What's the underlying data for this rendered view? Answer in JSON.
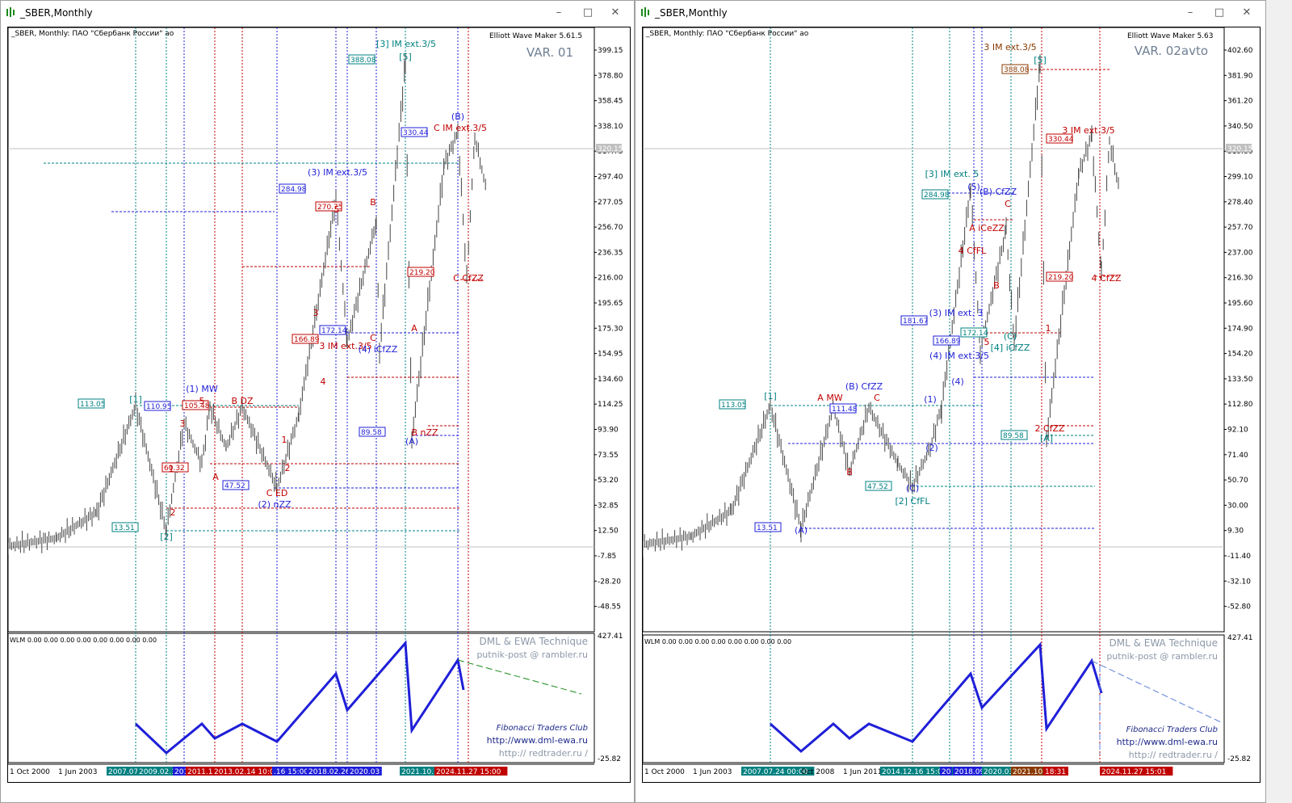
{
  "windows": [
    {
      "title": "_SBER,Monthly",
      "header_text": "_SBER, Monthly:  ПАО \"Сбербанк России\" ао",
      "indicator_name": "Elliott Wave Maker 5.61.5",
      "variant": "VAR. 01",
      "sub_label": "WLM 0.00 0.00 0.00 0.00 0.00 0.00 0.00 0.00",
      "watermark": {
        "l1": "DML & EWA Technique",
        "l2": "putnik-post @ rambler.ru",
        "l3": "Fibonacci     Traders     Club",
        "l4": "http://www.dml-ewa.ru",
        "l5": "http:// redtrader.ru /"
      },
      "y_ticks": [
        "399.15",
        "378.80",
        "358.45",
        "338.10",
        "317.75",
        "297.40",
        "277.05",
        "256.70",
        "236.35",
        "216.00",
        "195.65",
        "175.30",
        "154.95",
        "134.60",
        "114.25",
        "93.90",
        "73.55",
        "53.20",
        "32.85",
        "12.50",
        "-7.85",
        "-28.20",
        "-48.55"
      ],
      "sub_ticks": [
        "427.41",
        "-25.82"
      ],
      "current_price": "320.15",
      "x_labels": [
        {
          "t": "1 Oct 2000",
          "bg": "",
          "c": "#000"
        },
        {
          "t": "1 Jun 2003",
          "bg": "",
          "c": "#000"
        },
        {
          "t": "2007.07.",
          "bg": "#008080",
          "c": "#fff"
        },
        {
          "t": "2009.02.16",
          "bg": "#008080",
          "c": "#fff"
        },
        {
          "t": "201",
          "bg": "#1f1fd8",
          "c": "#fff"
        },
        {
          "t": "2011.1",
          "bg": "#c00000",
          "c": "#fff"
        },
        {
          "t": "2013.02.14 10:00",
          "bg": "#c00000",
          "c": "#fff"
        },
        {
          "t": ".16 15:00",
          "bg": "#1f1fd8",
          "c": "#fff"
        },
        {
          "t": "2018.02.26",
          "bg": "#1f1fd8",
          "c": "#fff"
        },
        {
          "t": "2020.03",
          "bg": "#1f1fd8",
          "c": "#fff"
        },
        {
          "t": "2021.10.11 18:",
          "bg": "#008080",
          "c": "#fff"
        },
        {
          "t": "2024.11.27 15:00",
          "bg": "#c00000",
          "c": "#fff"
        }
      ],
      "price_boxes": [
        {
          "t": "388.08",
          "c": "#008080"
        },
        {
          "t": "330.44",
          "c": "#1f1fd8"
        },
        {
          "t": "284.98",
          "c": "#1f1fd8"
        },
        {
          "t": "270.75",
          "c": "#c00000"
        },
        {
          "t": "219.20",
          "c": "#c00000"
        },
        {
          "t": "172.14",
          "c": "#1f1fd8"
        },
        {
          "t": "166.89",
          "c": "#c00000"
        },
        {
          "t": "113.05",
          "c": "#008080"
        },
        {
          "t": "110.95",
          "c": "#1f1fd8"
        },
        {
          "t": "105.48",
          "c": "#c00000"
        },
        {
          "t": "89.58",
          "c": "#1f1fd8"
        },
        {
          "t": "60.32",
          "c": "#c00000"
        },
        {
          "t": "47.52",
          "c": "#1f1fd8"
        },
        {
          "t": "13.51",
          "c": "#008080"
        }
      ],
      "wave_labels": [
        {
          "t": "[3] IM ext.3/5",
          "c": "#008080"
        },
        {
          "t": "[5]",
          "c": "#008080"
        },
        {
          "t": "(B)",
          "c": "#1f1fd8"
        },
        {
          "t": "C IM ext.3/5",
          "c": "#c00000"
        },
        {
          "t": "(3) IM ext.3/5",
          "c": "#1f1fd8"
        },
        {
          "t": "B",
          "c": "#c00000"
        },
        {
          "t": "5",
          "c": "#c00000"
        },
        {
          "t": "C CfZZ",
          "c": "#c00000"
        },
        {
          "t": "3",
          "c": "#c00000"
        },
        {
          "t": "3 IM ext.3/5",
          "c": "#c00000"
        },
        {
          "t": "(4) iCfZZ",
          "c": "#1f1fd8"
        },
        {
          "t": "C",
          "c": "#c00000"
        },
        {
          "t": "A",
          "c": "#c00000"
        },
        {
          "t": "4",
          "c": "#c00000"
        },
        {
          "t": "(1) MW",
          "c": "#1f1fd8"
        },
        {
          "t": "[1]",
          "c": "#008080"
        },
        {
          "t": "5",
          "c": "#c00000"
        },
        {
          "t": "B DZ",
          "c": "#c00000"
        },
        {
          "t": "3",
          "c": "#c00000"
        },
        {
          "t": "B nZZ",
          "c": "#c00000"
        },
        {
          "t": "(A)",
          "c": "#1f1fd8"
        },
        {
          "t": "1",
          "c": "#c00000"
        },
        {
          "t": "1",
          "c": "#c00000"
        },
        {
          "t": "A",
          "c": "#c00000"
        },
        {
          "t": "2",
          "c": "#c00000"
        },
        {
          "t": "C ED",
          "c": "#c00000"
        },
        {
          "t": "(2) nZZ",
          "c": "#1f1fd8"
        },
        {
          "t": "2",
          "c": "#c00000"
        },
        {
          "t": "[2]",
          "c": "#008080"
        }
      ],
      "colors": {
        "teal": "#008080",
        "blue": "#1f1fd8",
        "red": "#c00000",
        "candle": "#444444"
      }
    },
    {
      "title": "_SBER,Monthly",
      "header_text": "_SBER, Monthly:  ПАО \"Сбербанк России\" ао",
      "indicator_name": "Elliott Wave Maker 5.63",
      "variant": "VAR. 02avto",
      "sub_label": "WLM 0.00 0.00 0.00 0.00 0.00 0.00 0.00 0.00",
      "watermark": {
        "l1": "DML & EWA Technique",
        "l2": "putnik-post @ rambler.ru",
        "l3": "Fibonacci     Traders     Club",
        "l4": "http://www.dml-ewa.ru",
        "l5": "http:// redtrader.ru /"
      },
      "y_ticks": [
        "402.60",
        "381.90",
        "361.20",
        "340.50",
        "319.80",
        "299.10",
        "278.40",
        "257.70",
        "237.00",
        "216.30",
        "195.60",
        "174.90",
        "154.20",
        "133.50",
        "112.80",
        "92.10",
        "71.40",
        "50.70",
        "30.00",
        "9.30",
        "-11.40",
        "-32.10",
        "-52.80"
      ],
      "sub_ticks": [
        "427.41",
        "-25.82"
      ],
      "current_price": "320.15",
      "x_labels": [
        {
          "t": "1 Oct 2000",
          "bg": "",
          "c": "#000"
        },
        {
          "t": "1 Jun 2003",
          "bg": "",
          "c": "#000"
        },
        {
          "t": "2007.07.24 00:00",
          "bg": "#008080",
          "c": "#fff"
        },
        {
          "t": "Oct 2008",
          "bg": "",
          "c": "#000"
        },
        {
          "t": "1 Jun 2011",
          "bg": "",
          "c": "#000"
        },
        {
          "t": "2014.12.16 15:00",
          "bg": "#008080",
          "c": "#fff"
        },
        {
          "t": "20",
          "bg": "#1f1fd8",
          "c": "#fff"
        },
        {
          "t": "2018.09",
          "bg": "#1f1fd8",
          "c": "#fff"
        },
        {
          "t": "2020.03",
          "bg": "#008080",
          "c": "#fff"
        },
        {
          "t": "2021.10.11",
          "bg": "#8b3a00",
          "c": "#fff"
        },
        {
          "t": "18:31",
          "bg": "#c00000",
          "c": "#fff"
        },
        {
          "t": "2024.11.27 15:01",
          "bg": "#c00000",
          "c": "#fff"
        }
      ],
      "price_boxes": [
        {
          "t": "388.08",
          "c": "#8b3a00"
        },
        {
          "t": "330.44",
          "c": "#c00000"
        },
        {
          "t": "284.98",
          "c": "#008080"
        },
        {
          "t": "219.20",
          "c": "#c00000"
        },
        {
          "t": "181.67",
          "c": "#1f1fd8"
        },
        {
          "t": "166.89",
          "c": "#1f1fd8"
        },
        {
          "t": "172.14",
          "c": "#008080"
        },
        {
          "t": "113.05",
          "c": "#008080"
        },
        {
          "t": "111.48",
          "c": "#1f1fd8"
        },
        {
          "t": "89.58",
          "c": "#008080"
        },
        {
          "t": "47.52",
          "c": "#008080"
        },
        {
          "t": "13.51",
          "c": "#1f1fd8"
        }
      ],
      "wave_labels": [
        {
          "t": "3 IM ext.3/5",
          "c": "#8b3a00"
        },
        {
          "t": "[5]",
          "c": "#008080"
        },
        {
          "t": "3 IM ext.3/5",
          "c": "#c00000"
        },
        {
          "t": "[3] IM ext. 5",
          "c": "#008080"
        },
        {
          "t": "(5)",
          "c": "#1f1fd8"
        },
        {
          "t": "(B) CfZZ",
          "c": "#1f1fd8"
        },
        {
          "t": "C",
          "c": "#c00000"
        },
        {
          "t": "A iCeZZ",
          "c": "#c00000"
        },
        {
          "t": "4 CfFL",
          "c": "#c00000"
        },
        {
          "t": "B",
          "c": "#c00000"
        },
        {
          "t": "(3) IM ext. 3",
          "c": "#1f1fd8"
        },
        {
          "t": "5",
          "c": "#c00000"
        },
        {
          "t": "(C)",
          "c": "#008080"
        },
        {
          "t": "[4] iCfZZ",
          "c": "#008080"
        },
        {
          "t": "(4) IM ext.3/5",
          "c": "#1f1fd8"
        },
        {
          "t": "(4)",
          "c": "#1f1fd8"
        },
        {
          "t": "1",
          "c": "#c00000"
        },
        {
          "t": "4 CfZZ",
          "c": "#c00000"
        },
        {
          "t": "(B) CfZZ",
          "c": "#1f1fd8"
        },
        {
          "t": "A MW",
          "c": "#c00000"
        },
        {
          "t": "C",
          "c": "#c00000"
        },
        {
          "t": "[1]",
          "c": "#008080"
        },
        {
          "t": "(1)",
          "c": "#1f1fd8"
        },
        {
          "t": "(2)",
          "c": "#1f1fd8"
        },
        {
          "t": "B",
          "c": "#c00000"
        },
        {
          "t": "2 CfZZ",
          "c": "#c00000"
        },
        {
          "t": "[A]",
          "c": "#008080"
        },
        {
          "t": "(C)",
          "c": "#1f1fd8"
        },
        {
          "t": "[2] CfFL",
          "c": "#008080"
        },
        {
          "t": "(A)",
          "c": "#1f1fd8"
        }
      ],
      "colors": {
        "teal": "#008080",
        "blue": "#1f1fd8",
        "red": "#c00000",
        "candle": "#444444"
      }
    }
  ],
  "chart_data": [
    {
      "type": "bar",
      "title": "",
      "series": [
        {
          "values": [
            {
              "x": "2000",
              "y": 0
            },
            {
              "x": "2003",
              "y": 8
            },
            {
              "x": "2007.07",
              "y": 113.05
            },
            {
              "x": "2009.02",
              "y": 13.51
            },
            {
              "x": "2011",
              "y": 110.95
            },
            {
              "x": "2011.12",
              "y": 60.32
            },
            {
              "x": "2013.02",
              "y": 105.48
            },
            {
              "x": "2015.01",
              "y": 47.52
            },
            {
              "x": "2018.02",
              "y": 284.98
            },
            {
              "x": "2020.03",
              "y": 172.14
            },
            {
              "x": "2021.10",
              "y": 388.08
            },
            {
              "x": "2022.10",
              "y": 89.58
            },
            {
              "x": "2024.07",
              "y": 330.44
            },
            {
              "x": "2024.11",
              "y": 219.2
            },
            {
              "x": "2025",
              "y": 320.15
            }
          ]
        }
      ],
      "ylim": [
        -58,
        410
      ]
    },
    {
      "type": "bar",
      "title": "",
      "series": [
        {
          "values": [
            {
              "x": "2000",
              "y": 0
            },
            {
              "x": "2003",
              "y": 8
            },
            {
              "x": "2007.07",
              "y": 113.05
            },
            {
              "x": "2009.02",
              "y": 13.51
            },
            {
              "x": "2011",
              "y": 111.48
            },
            {
              "x": "2011.12",
              "y": 60.32
            },
            {
              "x": "2013.02",
              "y": 105.48
            },
            {
              "x": "2015.01",
              "y": 47.52
            },
            {
              "x": "2018.02",
              "y": 284.98
            },
            {
              "x": "2020.03",
              "y": 172.14
            },
            {
              "x": "2021.10",
              "y": 388.08
            },
            {
              "x": "2022.10",
              "y": 89.58
            },
            {
              "x": "2024.07",
              "y": 330.44
            },
            {
              "x": "2024.11",
              "y": 219.2
            },
            {
              "x": "2025",
              "y": 320.15
            }
          ]
        }
      ],
      "ylim": [
        -60,
        412
      ]
    }
  ]
}
